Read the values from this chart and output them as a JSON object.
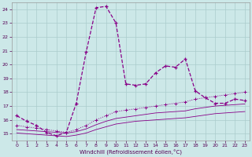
{
  "xlabel": "Windchill (Refroidissement éolien,°C)",
  "xlim": [
    -0.5,
    23.5
  ],
  "ylim": [
    14.5,
    24.5
  ],
  "xticks": [
    0,
    1,
    2,
    3,
    4,
    5,
    6,
    7,
    8,
    9,
    10,
    11,
    12,
    13,
    14,
    15,
    16,
    17,
    18,
    19,
    20,
    21,
    22,
    23
  ],
  "yticks": [
    15,
    16,
    17,
    18,
    19,
    20,
    21,
    22,
    23,
    24
  ],
  "bg_color": "#cce8e8",
  "grid_color": "#aacccc",
  "line_color": "#880088",
  "line1_x": [
    0,
    1,
    2,
    3,
    4,
    5,
    6,
    7,
    8,
    9,
    10,
    11,
    12,
    13,
    14,
    15,
    16,
    17,
    18,
    19,
    20,
    21,
    22,
    23
  ],
  "line1_y": [
    16.3,
    15.9,
    15.6,
    15.1,
    14.85,
    15.1,
    17.2,
    20.9,
    24.1,
    24.2,
    23.0,
    18.6,
    18.5,
    18.6,
    19.4,
    19.9,
    19.8,
    20.4,
    18.1,
    17.6,
    17.2,
    17.2,
    17.5,
    17.4
  ],
  "line2_x": [
    0,
    1,
    2,
    3,
    4,
    5,
    6,
    7,
    8,
    9,
    10,
    11,
    12,
    13,
    14,
    15,
    16,
    17,
    18,
    19,
    20,
    21,
    22,
    23
  ],
  "line2_y": [
    15.6,
    15.5,
    15.4,
    15.3,
    15.2,
    15.1,
    15.3,
    15.6,
    16.0,
    16.3,
    16.6,
    16.7,
    16.8,
    16.9,
    17.0,
    17.1,
    17.2,
    17.3,
    17.5,
    17.6,
    17.7,
    17.8,
    17.9,
    18.0
  ],
  "line3_x": [
    0,
    1,
    2,
    3,
    4,
    5,
    6,
    7,
    8,
    9,
    10,
    11,
    12,
    13,
    14,
    15,
    16,
    17,
    18,
    19,
    20,
    21,
    22,
    23
  ],
  "line3_y": [
    15.3,
    15.25,
    15.2,
    15.15,
    15.1,
    15.05,
    15.15,
    15.35,
    15.65,
    15.9,
    16.1,
    16.2,
    16.3,
    16.4,
    16.5,
    16.55,
    16.6,
    16.65,
    16.8,
    16.9,
    17.0,
    17.05,
    17.1,
    17.15
  ],
  "line4_x": [
    0,
    1,
    2,
    3,
    4,
    5,
    6,
    7,
    8,
    9,
    10,
    11,
    12,
    13,
    14,
    15,
    16,
    17,
    18,
    19,
    20,
    21,
    22,
    23
  ],
  "line4_y": [
    15.05,
    15.0,
    14.95,
    14.9,
    14.85,
    14.8,
    14.9,
    15.05,
    15.3,
    15.5,
    15.7,
    15.8,
    15.9,
    15.95,
    16.0,
    16.05,
    16.1,
    16.15,
    16.25,
    16.35,
    16.45,
    16.5,
    16.55,
    16.6
  ]
}
